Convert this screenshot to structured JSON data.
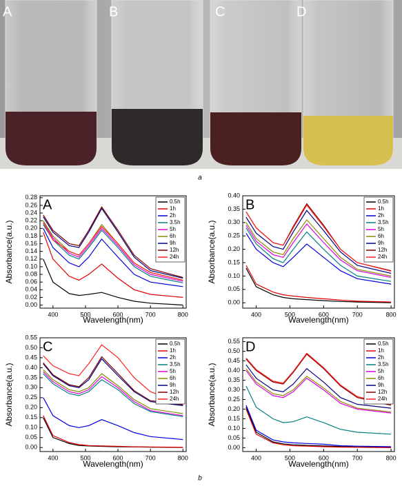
{
  "photo_labels": [
    "A",
    "B",
    "C",
    "D"
  ],
  "caption_a": "a",
  "caption_b": "b",
  "chart_data": [
    {
      "type": "line",
      "title": "A",
      "x_label": "Wavelength(nm)",
      "y_label": "Absorbance(a.u.)",
      "x": [
        370,
        400,
        450,
        480,
        510,
        550,
        600,
        650,
        700,
        800
      ],
      "xlim": [
        360,
        810
      ],
      "xticks": [
        400,
        500,
        600,
        700,
        800
      ],
      "ylim": [
        -0.008,
        0.285
      ],
      "yticks": [
        {
          "value": 0,
          "label": "0.00"
        },
        {
          "value": 0.02,
          "label": "0.02"
        },
        {
          "value": 0.04,
          "label": "0.04"
        },
        {
          "value": 0.06,
          "label": "0.06"
        },
        {
          "value": 0.08,
          "label": "0.08"
        },
        {
          "value": 0.1,
          "label": "0.10"
        },
        {
          "value": 0.12,
          "label": "0.12"
        },
        {
          "value": 0.14,
          "label": "0.14"
        },
        {
          "value": 0.16,
          "label": "0.16"
        },
        {
          "value": 0.18,
          "label": "0.18"
        },
        {
          "value": 0.2,
          "label": "0.20"
        },
        {
          "value": 0.22,
          "label": "0.22"
        },
        {
          "value": 0.24,
          "label": "0.24"
        },
        {
          "value": 0.26,
          "label": "0.26"
        },
        {
          "value": 0.28,
          "label": "0.28"
        }
      ],
      "series": [
        {
          "name": "0.5h",
          "color": "#000000",
          "values": [
            0.12,
            0.06,
            0.03,
            0.025,
            0.028,
            0.033,
            0.02,
            0.01,
            0.005,
            0.0
          ]
        },
        {
          "name": "1h",
          "color": "#e00000",
          "values": [
            0.19,
            0.12,
            0.075,
            0.065,
            0.08,
            0.107,
            0.07,
            0.04,
            0.028,
            0.02
          ]
        },
        {
          "name": "2h",
          "color": "#0000e0",
          "values": [
            0.2,
            0.15,
            0.11,
            0.1,
            0.125,
            0.172,
            0.125,
            0.08,
            0.06,
            0.048
          ]
        },
        {
          "name": "3.5h",
          "color": "#008080",
          "values": [
            0.21,
            0.17,
            0.13,
            0.12,
            0.15,
            0.195,
            0.15,
            0.1,
            0.075,
            0.058
          ]
        },
        {
          "name": "5h",
          "color": "#e000e0",
          "values": [
            0.22,
            0.175,
            0.135,
            0.125,
            0.155,
            0.2,
            0.155,
            0.105,
            0.08,
            0.062
          ]
        },
        {
          "name": "6h",
          "color": "#8a8a00",
          "values": [
            0.22,
            0.18,
            0.14,
            0.13,
            0.16,
            0.21,
            0.16,
            0.11,
            0.085,
            0.065
          ]
        },
        {
          "name": "9h",
          "color": "#000080",
          "values": [
            0.23,
            0.19,
            0.155,
            0.15,
            0.19,
            0.252,
            0.19,
            0.125,
            0.09,
            0.07
          ]
        },
        {
          "name": "12h",
          "color": "#800000",
          "values": [
            0.235,
            0.195,
            0.16,
            0.155,
            0.195,
            0.256,
            0.195,
            0.13,
            0.095,
            0.072
          ]
        },
        {
          "name": "24h",
          "color": "#ff2020",
          "values": [
            0.215,
            0.17,
            0.14,
            0.13,
            0.16,
            0.205,
            0.16,
            0.11,
            0.085,
            0.065
          ]
        }
      ]
    },
    {
      "type": "line",
      "title": "B",
      "x_label": "Wavelength(nm)",
      "y_label": "Absorbance(a.u.)",
      "x": [
        370,
        400,
        450,
        480,
        510,
        550,
        600,
        650,
        700,
        800
      ],
      "xlim": [
        360,
        810
      ],
      "xticks": [
        400,
        500,
        600,
        700,
        800
      ],
      "ylim": [
        -0.02,
        0.4
      ],
      "yticks": [
        {
          "value": 0,
          "label": "0.00"
        },
        {
          "value": 0.05,
          "label": "0.05"
        },
        {
          "value": 0.1,
          "label": "0.10"
        },
        {
          "value": 0.15,
          "label": "0.15"
        },
        {
          "value": 0.2,
          "label": "0.20"
        },
        {
          "value": 0.25,
          "label": "0.25"
        },
        {
          "value": 0.3,
          "label": "0.30"
        },
        {
          "value": 0.35,
          "label": "0.35"
        },
        {
          "value": 0.4,
          "label": "0.40"
        }
      ],
      "series": [
        {
          "name": "0.5h",
          "color": "#000000",
          "values": [
            0.13,
            0.06,
            0.03,
            0.02,
            0.015,
            0.012,
            0.008,
            0.005,
            0.003,
            0.0
          ]
        },
        {
          "name": "1h",
          "color": "#e00000",
          "values": [
            0.14,
            0.07,
            0.04,
            0.03,
            0.025,
            0.02,
            0.015,
            0.01,
            0.006,
            0.003
          ]
        },
        {
          "name": "2h",
          "color": "#0000e0",
          "values": [
            0.26,
            0.2,
            0.15,
            0.135,
            0.17,
            0.22,
            0.17,
            0.12,
            0.09,
            0.07
          ]
        },
        {
          "name": "3.5h",
          "color": "#008080",
          "values": [
            0.28,
            0.22,
            0.165,
            0.15,
            0.2,
            0.265,
            0.2,
            0.14,
            0.1,
            0.08
          ]
        },
        {
          "name": "5h",
          "color": "#e000e0",
          "values": [
            0.29,
            0.23,
            0.18,
            0.17,
            0.225,
            0.295,
            0.225,
            0.16,
            0.12,
            0.095
          ]
        },
        {
          "name": "6h",
          "color": "#8a8a00",
          "values": [
            0.3,
            0.24,
            0.19,
            0.18,
            0.24,
            0.31,
            0.24,
            0.17,
            0.125,
            0.1
          ]
        },
        {
          "name": "9h",
          "color": "#000080",
          "values": [
            0.32,
            0.26,
            0.21,
            0.2,
            0.265,
            0.345,
            0.27,
            0.19,
            0.14,
            0.11
          ]
        },
        {
          "name": "12h",
          "color": "#800000",
          "values": [
            0.34,
            0.28,
            0.225,
            0.215,
            0.285,
            0.37,
            0.29,
            0.2,
            0.15,
            0.12
          ]
        },
        {
          "name": "24h",
          "color": "#ff2020",
          "values": [
            0.34,
            0.28,
            0.225,
            0.215,
            0.28,
            0.365,
            0.285,
            0.2,
            0.15,
            0.118
          ]
        }
      ]
    },
    {
      "type": "line",
      "title": "C",
      "x_label": "Wavelength(nm)",
      "y_label": "Absorbance(a.u.)",
      "x": [
        370,
        400,
        450,
        480,
        510,
        550,
        600,
        650,
        700,
        800
      ],
      "xlim": [
        360,
        810
      ],
      "xticks": [
        400,
        500,
        600,
        700,
        800
      ],
      "ylim": [
        -0.02,
        0.55
      ],
      "yticks": [
        {
          "value": 0,
          "label": "0.00"
        },
        {
          "value": 0.05,
          "label": "0.05"
        },
        {
          "value": 0.1,
          "label": "0.10"
        },
        {
          "value": 0.15,
          "label": "0.15"
        },
        {
          "value": 0.2,
          "label": "0.20"
        },
        {
          "value": 0.25,
          "label": "0.25"
        },
        {
          "value": 0.3,
          "label": "0.30"
        },
        {
          "value": 0.35,
          "label": "0.35"
        },
        {
          "value": 0.4,
          "label": "0.40"
        },
        {
          "value": 0.45,
          "label": "0.45"
        },
        {
          "value": 0.5,
          "label": "0.50"
        },
        {
          "value": 0.55,
          "label": "0.55"
        }
      ],
      "series": [
        {
          "name": "0.5h",
          "color": "#000000",
          "values": [
            0.15,
            0.05,
            0.02,
            0.01,
            0.008,
            0.006,
            0.004,
            0.003,
            0.002,
            0.0
          ]
        },
        {
          "name": "1h",
          "color": "#e00000",
          "values": [
            0.16,
            0.06,
            0.025,
            0.015,
            0.01,
            0.008,
            0.006,
            0.004,
            0.003,
            0.001
          ]
        },
        {
          "name": "2h",
          "color": "#0000e0",
          "values": [
            0.25,
            0.16,
            0.11,
            0.1,
            0.11,
            0.14,
            0.11,
            0.075,
            0.055,
            0.04
          ]
        },
        {
          "name": "3.5h",
          "color": "#008080",
          "values": [
            0.37,
            0.32,
            0.27,
            0.26,
            0.28,
            0.34,
            0.29,
            0.22,
            0.18,
            0.155
          ]
        },
        {
          "name": "5h",
          "color": "#e000e0",
          "values": [
            0.38,
            0.33,
            0.28,
            0.27,
            0.29,
            0.355,
            0.3,
            0.23,
            0.185,
            0.16
          ]
        },
        {
          "name": "6h",
          "color": "#8a8a00",
          "values": [
            0.39,
            0.34,
            0.29,
            0.28,
            0.3,
            0.37,
            0.31,
            0.24,
            0.195,
            0.17
          ]
        },
        {
          "name": "9h",
          "color": "#000080",
          "values": [
            0.42,
            0.36,
            0.31,
            0.3,
            0.34,
            0.445,
            0.36,
            0.28,
            0.23,
            0.21
          ]
        },
        {
          "name": "12h",
          "color": "#800000",
          "values": [
            0.425,
            0.365,
            0.315,
            0.305,
            0.35,
            0.455,
            0.37,
            0.285,
            0.235,
            0.215
          ]
        },
        {
          "name": "24h",
          "color": "#ff2020",
          "values": [
            0.46,
            0.41,
            0.37,
            0.36,
            0.42,
            0.515,
            0.45,
            0.35,
            0.28,
            0.22
          ]
        }
      ]
    },
    {
      "type": "line",
      "title": "D",
      "x_label": "Wavelength(nm)",
      "y_label": "Absorbance(a.u.)",
      "x": [
        370,
        400,
        450,
        480,
        510,
        550,
        600,
        650,
        700,
        800
      ],
      "xlim": [
        360,
        810
      ],
      "xticks": [
        400,
        500,
        600,
        700,
        800
      ],
      "ylim": [
        -0.02,
        0.57
      ],
      "yticks": [
        {
          "value": 0,
          "label": "0.00"
        },
        {
          "value": 0.05,
          "label": "0.05"
        },
        {
          "value": 0.1,
          "label": "0.10"
        },
        {
          "value": 0.15,
          "label": "0.15"
        },
        {
          "value": 0.2,
          "label": "0.20"
        },
        {
          "value": 0.25,
          "label": "0.25"
        },
        {
          "value": 0.3,
          "label": "0.30"
        },
        {
          "value": 0.35,
          "label": "0.35"
        },
        {
          "value": 0.4,
          "label": "0.40"
        },
        {
          "value": 0.45,
          "label": "0.45"
        },
        {
          "value": 0.5,
          "label": "0.50"
        },
        {
          "value": 0.55,
          "label": "0.55"
        }
      ],
      "series": [
        {
          "name": "0.5h",
          "color": "#000000",
          "values": [
            0.21,
            0.08,
            0.03,
            0.02,
            0.015,
            0.012,
            0.009,
            0.006,
            0.004,
            0.002
          ]
        },
        {
          "name": "1h",
          "color": "#e00000",
          "values": [
            0.2,
            0.07,
            0.025,
            0.015,
            0.01,
            0.008,
            0.005,
            0.003,
            0.002,
            0.0
          ]
        },
        {
          "name": "2h",
          "color": "#0000e0",
          "values": [
            0.22,
            0.09,
            0.04,
            0.03,
            0.025,
            0.022,
            0.018,
            0.01,
            0.008,
            0.005
          ]
        },
        {
          "name": "3.5h",
          "color": "#008080",
          "values": [
            0.32,
            0.21,
            0.15,
            0.13,
            0.135,
            0.16,
            0.13,
            0.095,
            0.08,
            0.07
          ]
        },
        {
          "name": "5h",
          "color": "#e000e0",
          "values": [
            0.4,
            0.33,
            0.27,
            0.26,
            0.29,
            0.36,
            0.3,
            0.23,
            0.2,
            0.18
          ]
        },
        {
          "name": "6h",
          "color": "#8a8a00",
          "values": [
            0.41,
            0.34,
            0.28,
            0.27,
            0.3,
            0.37,
            0.31,
            0.24,
            0.205,
            0.185
          ]
        },
        {
          "name": "9h",
          "color": "#000080",
          "values": [
            0.43,
            0.36,
            0.3,
            0.29,
            0.33,
            0.41,
            0.34,
            0.26,
            0.225,
            0.205
          ]
        },
        {
          "name": "12h",
          "color": "#800000",
          "values": [
            0.46,
            0.4,
            0.34,
            0.33,
            0.39,
            0.485,
            0.41,
            0.32,
            0.26,
            0.22
          ]
        },
        {
          "name": "24h",
          "color": "#ff2020",
          "values": [
            0.465,
            0.405,
            0.345,
            0.335,
            0.395,
            0.49,
            0.415,
            0.325,
            0.265,
            0.225
          ]
        }
      ]
    }
  ]
}
